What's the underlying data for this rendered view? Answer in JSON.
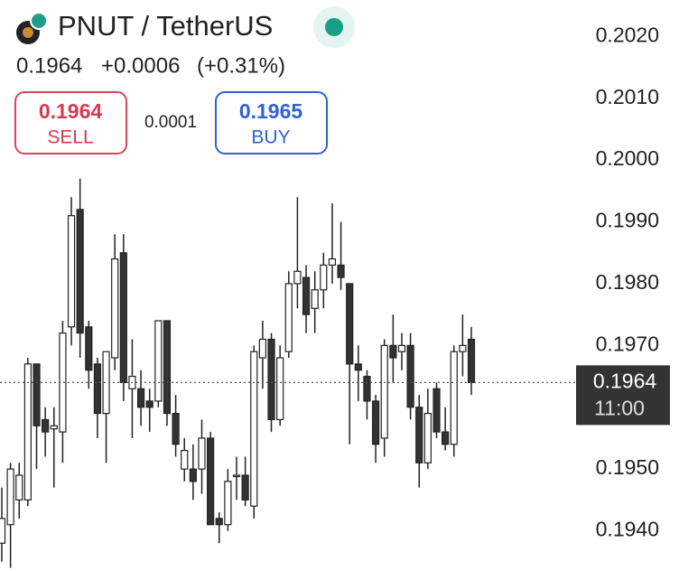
{
  "header": {
    "symbol": "PNUT / TetherUS",
    "price": "0.1964",
    "change": "+0.0006",
    "change_percent": "(+0.31%)"
  },
  "trade": {
    "sell_price": "0.1964",
    "sell_label": "SELL",
    "spread": "0.0001",
    "buy_price": "0.1965",
    "buy_label": "BUY"
  },
  "chart_data": {
    "type": "candlestick",
    "up_color": "#ffffff",
    "down_color": "#333333",
    "outline_color": "#222222",
    "ylim": [
      0.19335,
      0.20259
    ],
    "yticks": [
      {
        "value": 0.202,
        "label": "0.2020"
      },
      {
        "value": 0.201,
        "label": "0.2010"
      },
      {
        "value": 0.2,
        "label": "0.2000"
      },
      {
        "value": 0.199,
        "label": "0.1990"
      },
      {
        "value": 0.198,
        "label": "0.1980"
      },
      {
        "value": 0.197,
        "label": "0.1970"
      },
      {
        "value": 0.195,
        "label": "0.1950"
      },
      {
        "value": 0.194,
        "label": "0.1940"
      }
    ],
    "last_price": {
      "value": 0.1964,
      "label": "0.1964"
    },
    "last_time": "11:00",
    "open": [
      0.1938,
      0.1941,
      0.1945,
      0.1945,
      0.1967,
      0.1958,
      0.19565,
      0.1956,
      0.1973,
      0.1992,
      0.1973,
      0.1967,
      0.1959,
      0.1968,
      0.1985,
      0.1963,
      0.1963,
      0.1961,
      0.1961,
      0.1974,
      0.1959,
      0.195,
      0.195,
      0.195,
      0.1955,
      0.1942,
      0.1941,
      0.1949,
      0.1949,
      0.1944,
      0.1968,
      0.1971,
      0.1958,
      0.1969,
      0.198,
      0.1981,
      0.1976,
      0.1979,
      0.1983,
      0.1983,
      0.198,
      0.1967,
      0.1965,
      0.1961,
      0.1955,
      0.197,
      0.1969,
      0.197,
      0.196,
      0.1951,
      0.1963,
      0.1956,
      0.1954,
      0.1969,
      0.1971
    ],
    "high": [
      0.1947,
      0.1951,
      0.1951,
      0.1968,
      0.1967,
      0.196,
      0.196,
      0.1974,
      0.1994,
      0.1997,
      0.1974,
      0.1968,
      0.1969,
      0.1988,
      0.1988,
      0.1971,
      0.1966,
      0.1963,
      0.1974,
      0.1974,
      0.1962,
      0.1955,
      0.1954,
      0.1958,
      0.1956,
      0.1943,
      0.195,
      0.1952,
      0.1952,
      0.197,
      0.1974,
      0.1972,
      0.197,
      0.1982,
      0.1994,
      0.1983,
      0.1982,
      0.1985,
      0.1993,
      0.199,
      0.198,
      0.197,
      0.1966,
      0.1962,
      0.1971,
      0.1975,
      0.1972,
      0.1972,
      0.1962,
      0.1963,
      0.1964,
      0.196,
      0.197,
      0.1975,
      0.1973
    ],
    "low": [
      0.1935,
      0.1934,
      0.1942,
      0.1944,
      0.195,
      0.1952,
      0.1947,
      0.1951,
      0.197,
      0.1968,
      0.1963,
      0.1955,
      0.1951,
      0.1966,
      0.1961,
      0.1955,
      0.1957,
      0.1956,
      0.196,
      0.1957,
      0.1952,
      0.1948,
      0.1945,
      0.1946,
      0.1941,
      0.1938,
      0.194,
      0.1945,
      0.1944,
      0.1942,
      0.1963,
      0.1956,
      0.1957,
      0.1968,
      0.1976,
      0.1972,
      0.1972,
      0.1976,
      0.198,
      0.1979,
      0.1954,
      0.1961,
      0.1958,
      0.1951,
      0.1952,
      0.1964,
      0.1966,
      0.1958,
      0.1947,
      0.195,
      0.1955,
      0.1953,
      0.1952,
      0.1965,
      0.1962
    ],
    "close": [
      0.1942,
      0.195,
      0.1949,
      0.1967,
      0.1957,
      0.1956,
      0.1957,
      0.1972,
      0.1991,
      0.1972,
      0.1966,
      0.1959,
      0.1969,
      0.1984,
      0.1964,
      0.1965,
      0.196,
      0.196,
      0.1974,
      0.1959,
      0.1954,
      0.1953,
      0.1948,
      0.1955,
      0.1941,
      0.1941,
      0.1948,
      0.1949,
      0.1945,
      0.1969,
      0.1971,
      0.1958,
      0.1968,
      0.198,
      0.1982,
      0.1975,
      0.1979,
      0.1983,
      0.1984,
      0.1981,
      0.1967,
      0.1966,
      0.1961,
      0.1954,
      0.197,
      0.1968,
      0.197,
      0.196,
      0.1951,
      0.1959,
      0.1956,
      0.1954,
      0.1969,
      0.197,
      0.1964
    ]
  }
}
